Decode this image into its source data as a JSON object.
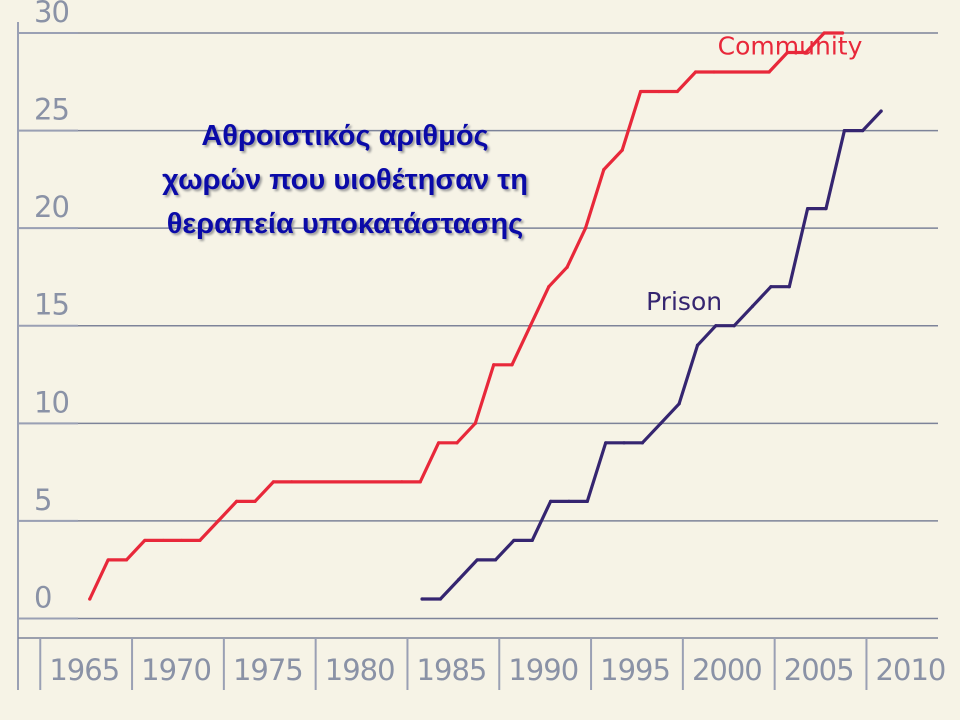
{
  "chart_data": {
    "type": "line",
    "title_lines": [
      "Αθροιστικός αριθμός",
      "χωρών που υιοθέτησαν τη",
      "θεραπεία υποκατάστασης"
    ],
    "xlabel": "",
    "ylabel": "",
    "xlim": [
      1961.5,
      2011.5
    ],
    "ylim": [
      -1,
      30
    ],
    "x_ticks": [
      1965,
      1970,
      1975,
      1980,
      1985,
      1990,
      1995,
      2000,
      2005,
      2010
    ],
    "y_ticks": [
      0,
      5,
      10,
      15,
      20,
      25,
      30
    ],
    "grid": true,
    "series": [
      {
        "name": "Community",
        "color": "#e8283a",
        "x": [
          1965.3,
          1966.3,
          1967.3,
          1968.3,
          1969.3,
          1970.3,
          1971.3,
          1972.3,
          1973.3,
          1974.3,
          1975.3,
          1976.3,
          1982.3,
          1983.3,
          1984.3,
          1985.3,
          1986.3,
          1987.3,
          1988.3,
          1989.3,
          1990.3,
          1991.3,
          1992.3,
          1993.3,
          1994.3,
          1995.3,
          1996.3,
          1997.3,
          1998.3,
          1999.3,
          2002.3,
          2003.3,
          2004.3,
          2005.3,
          2006.3
        ],
        "y": [
          1,
          3,
          3,
          4,
          4,
          4,
          4,
          5,
          6,
          6,
          7,
          7,
          7,
          7,
          9,
          9,
          10,
          13,
          13,
          15,
          17,
          18,
          20,
          23,
          24,
          27,
          27,
          27,
          28,
          28,
          28,
          29,
          29,
          30,
          30
        ]
      },
      {
        "name": "Prison",
        "color": "#352570",
        "x": [
          1983.4,
          1984.4,
          1985.4,
          1986.4,
          1987.4,
          1988.4,
          1989.4,
          1990.4,
          1991.4,
          1992.4,
          1993.4,
          1994.4,
          1995.4,
          1996.4,
          1997.4,
          1998.4,
          1999.4,
          2000.4,
          2001.4,
          2002.4,
          2003.4,
          2004.4,
          2005.4,
          2006.4,
          2007.4,
          2008.4
        ],
        "y": [
          1,
          1,
          2,
          3,
          3,
          4,
          4,
          6,
          6,
          6,
          9,
          9,
          9,
          10,
          11,
          14,
          15,
          15,
          16,
          17,
          17,
          21,
          21,
          25,
          25,
          26
        ]
      }
    ],
    "annotations": [
      {
        "text": "Community",
        "series": "Community",
        "x": 1999.5,
        "y": 28.9
      },
      {
        "text": "Prison",
        "series": "Prison",
        "x": 1995.6,
        "y": 15.8
      }
    ]
  }
}
